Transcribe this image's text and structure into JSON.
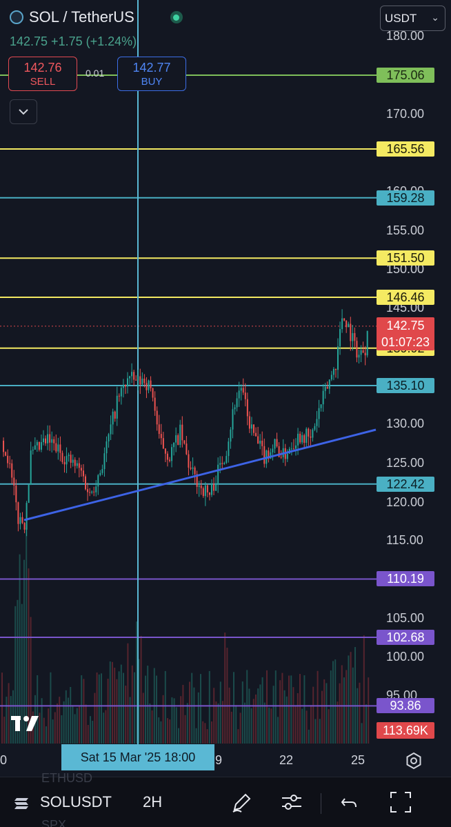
{
  "header": {
    "title": "SOL / TetherUS",
    "price_line": "142.75 +1.75 (+1.24%)",
    "sell_price": "142.76",
    "sell_label": "SELL",
    "spread": "0.01",
    "buy_price": "142.77",
    "buy_label": "BUY",
    "currency": "USDT"
  },
  "price_axis": {
    "labels": [
      "180.00",
      "170.00",
      "160.00",
      "155.00",
      "150.00",
      "145.00",
      "130.00",
      "125.00",
      "120.00",
      "115.00",
      "105.00",
      "100.00",
      "95.00"
    ]
  },
  "levels": [
    {
      "value": "175.06",
      "color": "#7fbf5a",
      "text_color": "#1b2a12"
    },
    {
      "value": "165.56",
      "color": "#f4ea62",
      "text_color": "#1a1a0a"
    },
    {
      "value": "159.28",
      "color": "#4ab0c4",
      "text_color": "#0b1e24"
    },
    {
      "value": "151.50",
      "color": "#f4ea62",
      "text_color": "#1a1a0a"
    },
    {
      "value": "146.46",
      "color": "#f4ea62",
      "text_color": "#1a1a0a"
    },
    {
      "value": "139.92",
      "color": "#f4ea62",
      "text_color": "#1a1a0a"
    },
    {
      "value": "135.10",
      "color": "#4ab0c4",
      "text_color": "#0b1e24"
    },
    {
      "value": "122.42",
      "color": "#4ab0c4",
      "text_color": "#0b1e24"
    },
    {
      "value": "110.19",
      "color": "#7a55cc",
      "text_color": "#ffffff"
    },
    {
      "value": "102.68",
      "color": "#7a55cc",
      "text_color": "#ffffff"
    },
    {
      "value": "93.86",
      "color": "#7a55cc",
      "text_color": "#ffffff"
    }
  ],
  "current": {
    "price": "142.75",
    "countdown": "01:07:23"
  },
  "volume_label": "113.69K",
  "time_axis": {
    "labels": [
      "0",
      "9",
      "22",
      "25"
    ],
    "crosshair_label": "Sat 15 Mar '25   18:00"
  },
  "toolbar": {
    "symbol": "SOLUSDT",
    "interval": "2H",
    "ghost_above": "ETHUSD",
    "ghost_below": "SPX"
  },
  "colors": {
    "background": "#131722",
    "up": "#26a69a",
    "down": "#ef5350",
    "trendline": "#3d63e6",
    "crosshair": "#5ab8d4"
  },
  "icons": [
    "tradingview-logo-icon",
    "chevron-down-icon",
    "settings-gear-icon",
    "pen-draw-icon",
    "sliders-icon",
    "undo-icon",
    "fullscreen-icon",
    "solana-logo-icon"
  ]
}
